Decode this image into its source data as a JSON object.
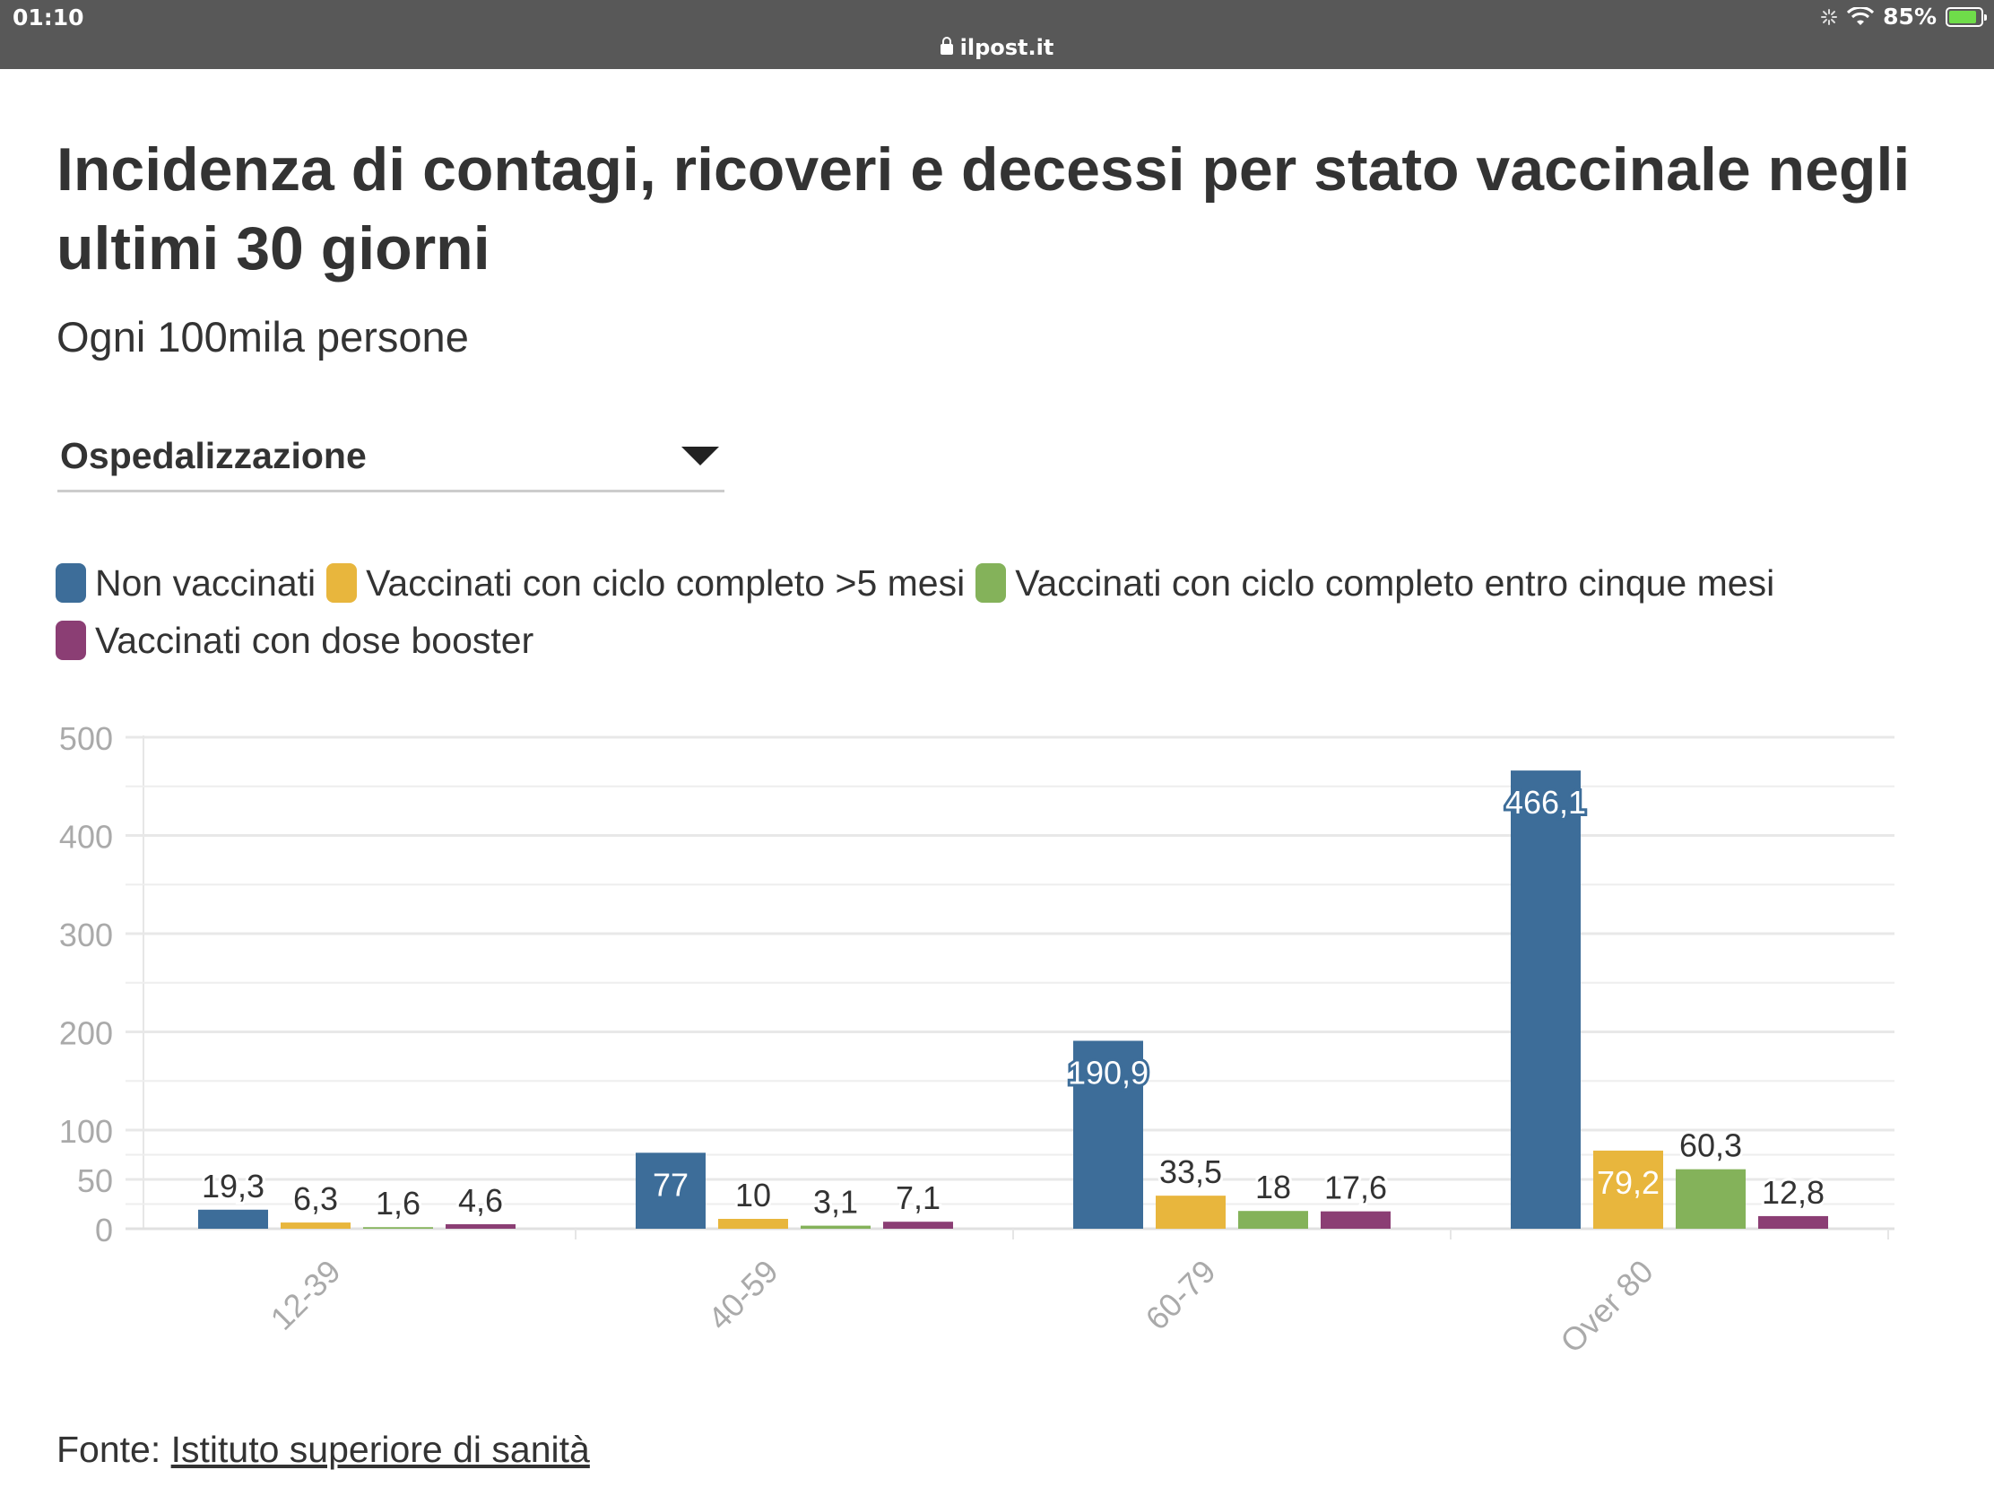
{
  "status_bar": {
    "time": "01:10",
    "url": "ilpost.it",
    "battery": "85%"
  },
  "title": "Incidenza di contagi, ricoveri e decessi per stato vaccinale negli ultimi 30 giorni",
  "subtitle": "Ogni 100mila persone",
  "selector": {
    "value": "Ospedalizzazione"
  },
  "source": {
    "prefix": "Fonte: ",
    "link_text": "Istituto superiore di sanità"
  },
  "chart_data": {
    "type": "bar",
    "title": "Incidenza di contagi, ricoveri e decessi per stato vaccinale negli ultimi 30 giorni",
    "subtitle": "Ogni 100mila persone",
    "xlabel": "",
    "ylabel": "",
    "ylim": [
      0,
      500
    ],
    "y_scale": "piecewise-linear (0–100 expanded)",
    "yticks": [
      0,
      50,
      100,
      200,
      300,
      400,
      500
    ],
    "ytick_labels": [
      "0",
      "50",
      "100",
      "200",
      "300",
      "400",
      "500"
    ],
    "grid": true,
    "legend_position": "top",
    "categories": [
      "12-39",
      "40-59",
      "60-79",
      "Over 80"
    ],
    "series": [
      {
        "name": "Non vaccinati",
        "color": "#3d6d99",
        "values": [
          19.3,
          77,
          190.9,
          466.1
        ],
        "labels": [
          "19,3",
          "77",
          "190,9",
          "466,1"
        ]
      },
      {
        "name": "Vaccinati con ciclo completo >5 mesi",
        "color": "#e8b63d",
        "values": [
          6.3,
          10,
          33.5,
          79.2
        ],
        "labels": [
          "6,3",
          "10",
          "33,5",
          "79,2"
        ]
      },
      {
        "name": "Vaccinati con ciclo completo entro cinque mesi",
        "color": "#84b25a",
        "values": [
          1.6,
          3.1,
          18,
          60.3
        ],
        "labels": [
          "1,6",
          "3,1",
          "18",
          "60,3"
        ]
      },
      {
        "name": "Vaccinati con dose booster",
        "color": "#8b3e74",
        "values": [
          4.6,
          7.1,
          17.6,
          12.8
        ],
        "labels": [
          "4,6",
          "7,1",
          "17,6",
          "12,8"
        ]
      }
    ]
  }
}
